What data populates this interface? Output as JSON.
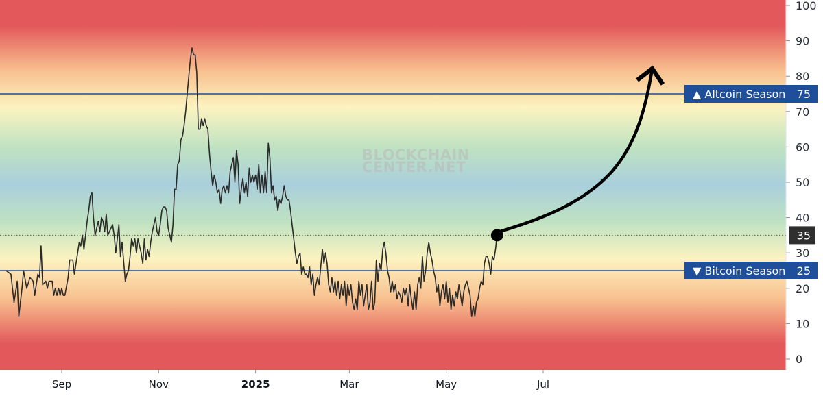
{
  "watermark": {
    "line1": "BLOCKCHAIN",
    "line2": "CENTER.NET"
  },
  "colors": {
    "line": "#2b2b2b",
    "threshold": "#1f4e9a",
    "tag_bg": "#1f4e9a",
    "current_tag_bg": "#2f2f2f",
    "arrow": "#000000",
    "band_red": "#e2585b",
    "band_orange": "#f8bf8e",
    "band_yellow": "#fcf3c0",
    "band_green": "#bfe2c2",
    "band_blue": "#a9cfdc"
  },
  "chart_data": {
    "type": "line",
    "title": "",
    "xlabel": "",
    "ylabel": "",
    "ylim": [
      -3,
      101
    ],
    "y_ticks": [
      0,
      10,
      20,
      30,
      40,
      50,
      60,
      70,
      80,
      90,
      100
    ],
    "x_ticks": [
      {
        "label": "Sep",
        "day": 0
      },
      {
        "label": "Nov",
        "day": 61
      },
      {
        "label": "2025",
        "day": 122,
        "bold": true
      },
      {
        "label": "Mar",
        "day": 181
      },
      {
        "label": "May",
        "day": 242
      },
      {
        "label": "Jul",
        "day": 303
      }
    ],
    "x_range_days": [
      -35,
      450
    ],
    "thresholds": [
      {
        "label": "▲ Altcoin Season",
        "value": 75
      },
      {
        "label": "▼ Bitcoin Season",
        "value": 25
      }
    ],
    "current_value": 35,
    "series": [
      {
        "values": [
          [
            -35,
            25
          ],
          [
            -32,
            24
          ],
          [
            -30,
            16
          ],
          [
            -28,
            22
          ],
          [
            -27,
            12
          ],
          [
            -25,
            20
          ],
          [
            -24,
            25
          ],
          [
            -22,
            20
          ],
          [
            -20,
            23
          ],
          [
            -18,
            22
          ],
          [
            -17,
            18
          ],
          [
            -15,
            24
          ],
          [
            -14,
            23
          ],
          [
            -13,
            32
          ],
          [
            -12,
            21
          ],
          [
            -10,
            22
          ],
          [
            -9,
            20
          ],
          [
            -8,
            22
          ],
          [
            -6,
            22
          ],
          [
            -5,
            18
          ],
          [
            -4,
            20
          ],
          [
            -3,
            18
          ],
          [
            -2,
            20
          ],
          [
            -1,
            18
          ],
          [
            0,
            20
          ],
          [
            1,
            18
          ],
          [
            2,
            18
          ],
          [
            4,
            23
          ],
          [
            5,
            28
          ],
          [
            7,
            28
          ],
          [
            8,
            24
          ],
          [
            10,
            30
          ],
          [
            11,
            33
          ],
          [
            12,
            32
          ],
          [
            13,
            35
          ],
          [
            14,
            31
          ],
          [
            15,
            35
          ],
          [
            16,
            39
          ],
          [
            17,
            42
          ],
          [
            18,
            46
          ],
          [
            19,
            47
          ],
          [
            20,
            40
          ],
          [
            21,
            35
          ],
          [
            23,
            39
          ],
          [
            24,
            36
          ],
          [
            25,
            40
          ],
          [
            26,
            39
          ],
          [
            27,
            36
          ],
          [
            28,
            41
          ],
          [
            29,
            35
          ],
          [
            30,
            36
          ],
          [
            32,
            38
          ],
          [
            33,
            35
          ],
          [
            34,
            30
          ],
          [
            36,
            38
          ],
          [
            37,
            29
          ],
          [
            38,
            33
          ],
          [
            40,
            22
          ],
          [
            41,
            24
          ],
          [
            42,
            25
          ],
          [
            43,
            29
          ],
          [
            44,
            34
          ],
          [
            45,
            32
          ],
          [
            46,
            34
          ],
          [
            47,
            30
          ],
          [
            48,
            34
          ],
          [
            49,
            32
          ],
          [
            50,
            30
          ],
          [
            51,
            27
          ],
          [
            52,
            34
          ],
          [
            53,
            28
          ],
          [
            54,
            31
          ],
          [
            55,
            29
          ],
          [
            56,
            33
          ],
          [
            57,
            36
          ],
          [
            58,
            38
          ],
          [
            59,
            40
          ],
          [
            60,
            36
          ],
          [
            61,
            35
          ],
          [
            62,
            38
          ],
          [
            63,
            42
          ],
          [
            64,
            43
          ],
          [
            65,
            43
          ],
          [
            66,
            42
          ],
          [
            67,
            37
          ],
          [
            68,
            35
          ],
          [
            69,
            33
          ],
          [
            70,
            38
          ],
          [
            71,
            48
          ],
          [
            72,
            48
          ],
          [
            73,
            55
          ],
          [
            74,
            56
          ],
          [
            75,
            62
          ],
          [
            76,
            63
          ],
          [
            77,
            66
          ],
          [
            78,
            70
          ],
          [
            79,
            75
          ],
          [
            80,
            80
          ],
          [
            81,
            85
          ],
          [
            82,
            88
          ],
          [
            83,
            86
          ],
          [
            84,
            86
          ],
          [
            85,
            81
          ],
          [
            86,
            65
          ],
          [
            87,
            65
          ],
          [
            88,
            68
          ],
          [
            89,
            66
          ],
          [
            90,
            68
          ],
          [
            91,
            66
          ],
          [
            92,
            65
          ],
          [
            93,
            58
          ],
          [
            94,
            53
          ],
          [
            95,
            49
          ],
          [
            96,
            52
          ],
          [
            97,
            50
          ],
          [
            98,
            47
          ],
          [
            99,
            48
          ],
          [
            100,
            44
          ],
          [
            101,
            48
          ],
          [
            102,
            49
          ],
          [
            103,
            47
          ],
          [
            104,
            49
          ],
          [
            105,
            47
          ],
          [
            106,
            53
          ],
          [
            107,
            55
          ],
          [
            108,
            57
          ],
          [
            109,
            50
          ],
          [
            110,
            59
          ],
          [
            111,
            55
          ],
          [
            112,
            44
          ],
          [
            113,
            48
          ],
          [
            114,
            51
          ],
          [
            115,
            47
          ],
          [
            116,
            50
          ],
          [
            117,
            46
          ],
          [
            118,
            54
          ],
          [
            119,
            50
          ],
          [
            120,
            52
          ],
          [
            121,
            50
          ],
          [
            122,
            52
          ],
          [
            123,
            48
          ],
          [
            124,
            55
          ],
          [
            125,
            47
          ],
          [
            126,
            52
          ],
          [
            127,
            47
          ],
          [
            128,
            53
          ],
          [
            129,
            47
          ],
          [
            130,
            61
          ],
          [
            131,
            57
          ],
          [
            132,
            47
          ],
          [
            133,
            49
          ],
          [
            134,
            45
          ],
          [
            135,
            46
          ],
          [
            136,
            42
          ],
          [
            137,
            45
          ],
          [
            138,
            44
          ],
          [
            139,
            46
          ],
          [
            140,
            49
          ],
          [
            141,
            46
          ],
          [
            142,
            45
          ],
          [
            143,
            45
          ],
          [
            144,
            42
          ],
          [
            145,
            38
          ],
          [
            146,
            34
          ],
          [
            147,
            30
          ],
          [
            148,
            27
          ],
          [
            149,
            29
          ],
          [
            150,
            30
          ],
          [
            151,
            24
          ],
          [
            152,
            26
          ],
          [
            153,
            24
          ],
          [
            154,
            24
          ],
          [
            155,
            23
          ],
          [
            156,
            26
          ],
          [
            157,
            21
          ],
          [
            158,
            24
          ],
          [
            159,
            18
          ],
          [
            160,
            21
          ],
          [
            161,
            23
          ],
          [
            162,
            21
          ],
          [
            163,
            26
          ],
          [
            164,
            31
          ],
          [
            165,
            27
          ],
          [
            166,
            30
          ],
          [
            167,
            27
          ],
          [
            168,
            21
          ],
          [
            169,
            19
          ],
          [
            170,
            23
          ],
          [
            171,
            19
          ],
          [
            172,
            22
          ],
          [
            173,
            18
          ],
          [
            174,
            22
          ],
          [
            175,
            17
          ],
          [
            176,
            21
          ],
          [
            177,
            18
          ],
          [
            178,
            22
          ],
          [
            179,
            15
          ],
          [
            180,
            21
          ],
          [
            181,
            18
          ],
          [
            182,
            21
          ],
          [
            183,
            16
          ],
          [
            184,
            14
          ],
          [
            185,
            17
          ],
          [
            186,
            14
          ],
          [
            187,
            22
          ],
          [
            188,
            18
          ],
          [
            189,
            21
          ],
          [
            190,
            15
          ],
          [
            191,
            18
          ],
          [
            192,
            21
          ],
          [
            193,
            14
          ],
          [
            194,
            16
          ],
          [
            195,
            22
          ],
          [
            196,
            14
          ],
          [
            197,
            16
          ],
          [
            198,
            28
          ],
          [
            199,
            22
          ],
          [
            200,
            27
          ],
          [
            201,
            25
          ],
          [
            202,
            31
          ],
          [
            203,
            33
          ],
          [
            204,
            30
          ],
          [
            205,
            25
          ],
          [
            206,
            23
          ],
          [
            207,
            19
          ],
          [
            208,
            22
          ],
          [
            209,
            19
          ],
          [
            210,
            21
          ],
          [
            211,
            17
          ],
          [
            212,
            19
          ],
          [
            213,
            18
          ],
          [
            214,
            16
          ],
          [
            215,
            20
          ],
          [
            216,
            18
          ],
          [
            217,
            20
          ],
          [
            218,
            15
          ],
          [
            219,
            21
          ],
          [
            220,
            17
          ],
          [
            221,
            14
          ],
          [
            222,
            19
          ],
          [
            223,
            14
          ],
          [
            224,
            21
          ],
          [
            225,
            23
          ],
          [
            226,
            20
          ],
          [
            227,
            29
          ],
          [
            228,
            22
          ],
          [
            229,
            25
          ],
          [
            230,
            30
          ],
          [
            231,
            33
          ],
          [
            232,
            30
          ],
          [
            233,
            28
          ],
          [
            234,
            25
          ],
          [
            235,
            23
          ],
          [
            236,
            19
          ],
          [
            237,
            21
          ],
          [
            238,
            15
          ],
          [
            239,
            19
          ],
          [
            240,
            21
          ],
          [
            241,
            17
          ],
          [
            242,
            22
          ],
          [
            243,
            16
          ],
          [
            244,
            20
          ],
          [
            245,
            14
          ],
          [
            246,
            18
          ],
          [
            247,
            15
          ],
          [
            248,
            19
          ],
          [
            249,
            17
          ],
          [
            250,
            21
          ],
          [
            251,
            18
          ],
          [
            252,
            15
          ],
          [
            253,
            19
          ],
          [
            254,
            21
          ],
          [
            255,
            22
          ],
          [
            256,
            20
          ],
          [
            257,
            18
          ],
          [
            258,
            12
          ],
          [
            259,
            15
          ],
          [
            260,
            12
          ],
          [
            261,
            16
          ],
          [
            262,
            17
          ],
          [
            263,
            20
          ],
          [
            264,
            22
          ],
          [
            265,
            21
          ],
          [
            266,
            27
          ],
          [
            267,
            29
          ],
          [
            268,
            29
          ],
          [
            269,
            27
          ],
          [
            270,
            24
          ],
          [
            271,
            29
          ],
          [
            272,
            28
          ],
          [
            273,
            31
          ],
          [
            274,
            35
          ]
        ]
      }
    ]
  }
}
